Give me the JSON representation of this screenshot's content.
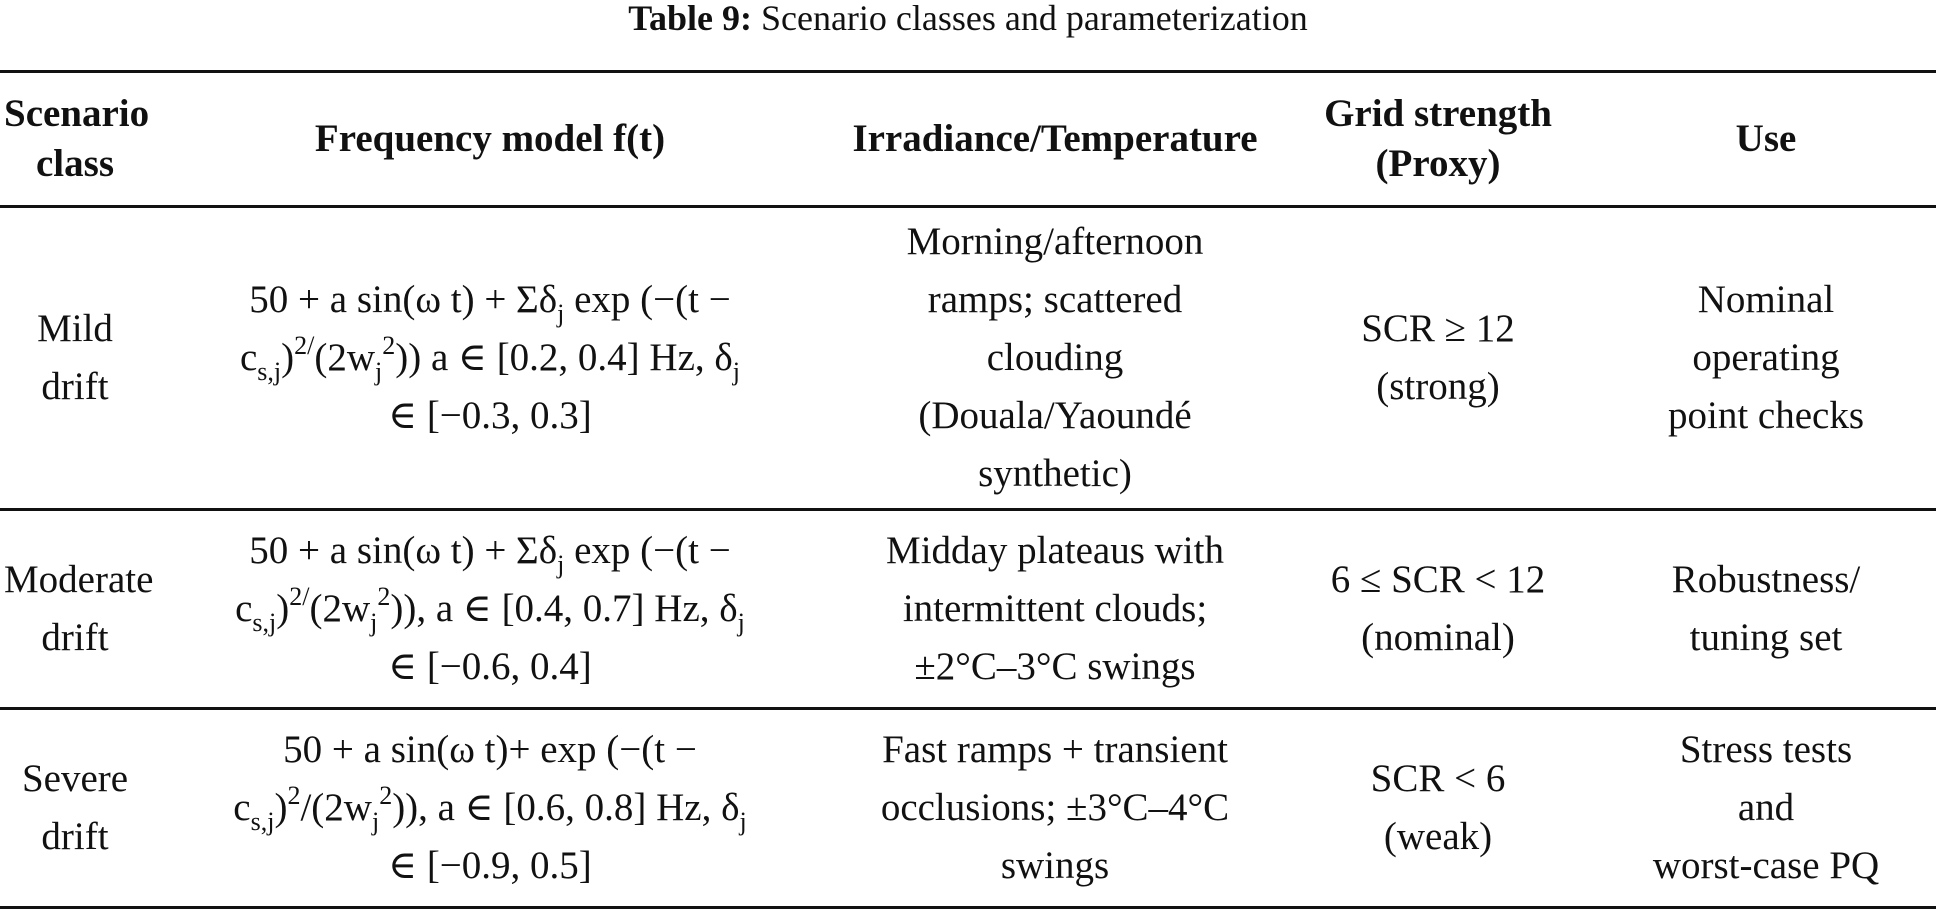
{
  "caption": {
    "label": "Table 9:",
    "text": "Scenario classes and parameterization"
  },
  "headers": {
    "scenario_class": "Scenario\nclass",
    "frequency_model": "Frequency model f(t)",
    "irradiance": "Irradiance/Temperature",
    "grid_strength": "Grid strength\n(Proxy)",
    "use": "Use"
  },
  "rows": [
    {
      "scenario_class": "Mild\ndrift",
      "irradiance": "Morning/afternoon\nramps; scattered\nclouding\n(Douala/Yaoundé\nsynthetic)",
      "grid_strength": "SCR ≥ 12\n(strong)",
      "use": "Nominal\noperating\npoint checks"
    },
    {
      "scenario_class": "Moderate\ndrift",
      "irradiance": "Midday plateaus with\nintermittent clouds;\n±2°C–3°C swings",
      "grid_strength": "6 ≤ SCR < 12\n(nominal)",
      "use": "Robustness/\ntuning set"
    },
    {
      "scenario_class": "Severe\ndrift",
      "irradiance": "Fast ramps + transient\nocclusions; ±3°C–4°C\nswings",
      "grid_strength": "SCR < 6\n(weak)",
      "use": "Stress tests\nand\nworst-case PQ"
    }
  ],
  "formula": {
    "f50": "50 + a sin(ω t) + Σδ",
    "f50_severe": "50 + a sin(ω t)+ exp (−(t −",
    "exp_open": " exp (−(t −",
    "c": "c",
    "sub_sj": "s,j",
    "sub_j": "j",
    "close_paren": ")",
    "sup_2": "2",
    "slash": "/",
    "slash_2w": "(2w",
    "paren2": "))",
    "sep_comma": ", a ∈ ",
    "sep_space": " a ∈ ",
    "hz_delta": " Hz, δ",
    "mild_a_range": "[0.2, 0.4]",
    "mild_delta_range": "∈ [−0.3, 0.3]",
    "moderate_a_range": "[0.4, 0.7]",
    "moderate_delta_range": "∈ [−0.6, 0.4]",
    "severe_a_range": "[0.6, 0.8]",
    "severe_delta_range": "∈ [−0.9, 0.5]"
  }
}
